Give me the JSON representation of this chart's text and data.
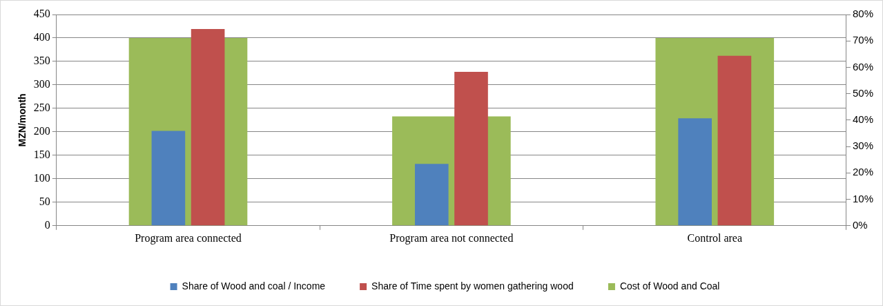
{
  "chart_data": {
    "type": "bar",
    "ylabel": "MZN/month",
    "categories": [
      "Program area connected",
      "Program area not connected",
      "Control area"
    ],
    "series": [
      {
        "name": "Cost of Wood and Coal",
        "color": "#9bbb59",
        "values": [
          400,
          233,
          400
        ]
      },
      {
        "name": "Share of Wood and coal / Income",
        "color": "#4f81bd",
        "values": [
          35.9,
          23.4,
          40.7
        ],
        "axis": "y2"
      },
      {
        "name": "Share of Time spent by women gathering wood",
        "color": "#c0504d",
        "values": [
          74.5,
          58.3,
          64.4
        ],
        "axis": "y2"
      }
    ],
    "ylim": [
      0,
      450
    ],
    "yticks": [
      0,
      50,
      100,
      150,
      200,
      250,
      300,
      350,
      400,
      450
    ],
    "y2lim": [
      0,
      80
    ],
    "y2ticks": [
      {
        "value": 0,
        "label": "0%"
      },
      {
        "value": 10,
        "label": "10%"
      },
      {
        "value": 20,
        "label": "20%"
      },
      {
        "value": 30,
        "label": "30%"
      },
      {
        "value": 40,
        "label": "40%"
      },
      {
        "value": 50,
        "label": "50%"
      },
      {
        "value": 60,
        "label": "60%"
      },
      {
        "value": 70,
        "label": "70%"
      },
      {
        "value": 80,
        "label": "80%"
      }
    ],
    "grid": "y",
    "legend": "bottom"
  }
}
